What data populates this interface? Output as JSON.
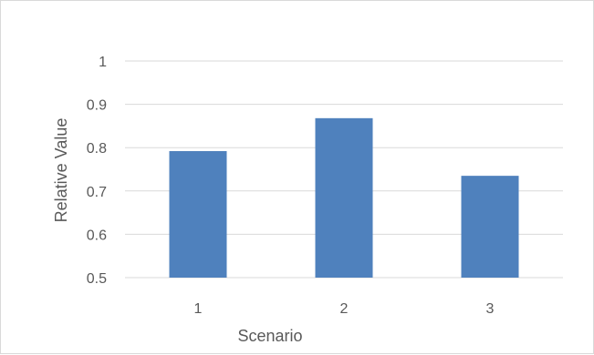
{
  "chart_data": {
    "type": "bar",
    "categories": [
      "1",
      "2",
      "3"
    ],
    "values": [
      0.792,
      0.868,
      0.735
    ],
    "title": "",
    "xlabel": "Scenario",
    "ylabel": "Relative Value",
    "ylim": [
      0.5,
      1
    ],
    "yticks": [
      "0.5",
      "0.6",
      "0.7",
      "0.8",
      "0.9",
      "1"
    ],
    "grid": true,
    "bar_color": "#4f81bd",
    "grid_color": "#d9d9d9"
  }
}
